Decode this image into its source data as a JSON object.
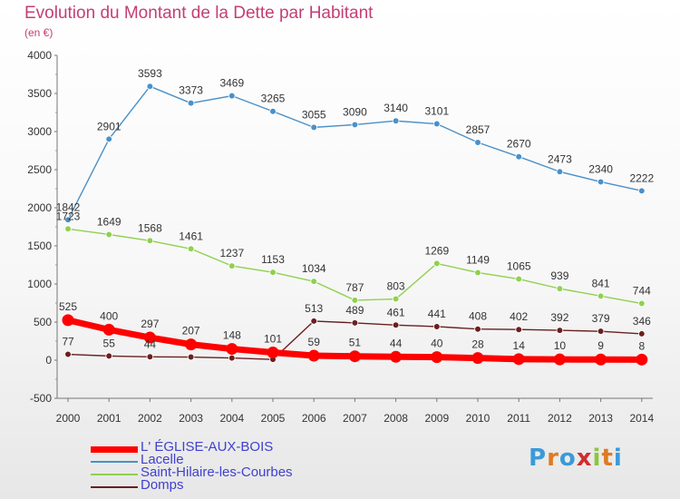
{
  "header": {
    "title": "Evolution du Montant de la Dette par Habitant",
    "subtitle": "(en €)"
  },
  "logo": {
    "letters": [
      "P",
      "r",
      "o",
      "x",
      "i",
      "t",
      "i"
    ],
    "colors": [
      "#3a9ad9",
      "#e07a20",
      "#3a9ad9",
      "#d22d2d",
      "#8cc63f",
      "#e07a20",
      "#3a9ad9"
    ]
  },
  "chart_data": {
    "type": "line",
    "title": "Evolution du Montant de la Dette par Habitant",
    "subtitle": "(en €)",
    "x": [
      "2000",
      "2001",
      "2002",
      "2003",
      "2004",
      "2005",
      "2006",
      "2007",
      "2008",
      "2009",
      "2010",
      "2011",
      "2012",
      "2013",
      "2014"
    ],
    "ylim": [
      -500,
      4000
    ],
    "yticks": [
      -500,
      0,
      500,
      1000,
      1500,
      2000,
      2500,
      3000,
      3500,
      4000
    ],
    "grid": false,
    "legend_position": "bottom-left",
    "series": [
      {
        "name": "L' ÉGLISE-AUX-BOIS",
        "color": "#ff0000",
        "values": [
          525,
          400,
          297,
          207,
          148,
          101,
          59,
          51,
          44,
          40,
          28,
          14,
          10,
          9,
          8
        ],
        "labels": [
          "525",
          "400",
          "297",
          "207",
          "148",
          "101",
          "59",
          "51",
          "44",
          "40",
          "28",
          "14",
          "10",
          "9",
          "8"
        ]
      },
      {
        "name": "Lacelle",
        "color": "#4a90c8",
        "values": [
          1842,
          2901,
          3593,
          3373,
          3469,
          3265,
          3055,
          3090,
          3140,
          3101,
          2857,
          2670,
          2473,
          2340,
          2222
        ],
        "labels": [
          "1842",
          "2901",
          "3593",
          "3373",
          "3469",
          "3265",
          "3055",
          "3090",
          "3140",
          "3101",
          "2857",
          "2670",
          "2473",
          "2340",
          "2222"
        ]
      },
      {
        "name": "Saint-Hilaire-les-Courbes",
        "color": "#8fd14f",
        "values": [
          1723,
          1649,
          1568,
          1461,
          1237,
          1153,
          1034,
          787,
          803,
          1269,
          1149,
          1065,
          939,
          841,
          744
        ],
        "labels": [
          "1723",
          "1649",
          "1568",
          "1461",
          "1237",
          "1153",
          "1034",
          "787",
          "803",
          "1269",
          "1149",
          "1065",
          "939",
          "841",
          "744"
        ]
      },
      {
        "name": "Domps",
        "color": "#6b1f1f",
        "values": [
          77,
          55,
          44,
          41,
          29,
          10,
          513,
          489,
          461,
          441,
          408,
          402,
          392,
          379,
          346
        ],
        "labels": [
          "77",
          "55",
          "44",
          "",
          "",
          "",
          "513",
          "489",
          "461",
          "441",
          "408",
          "402",
          "392",
          "379",
          "346"
        ]
      }
    ]
  }
}
